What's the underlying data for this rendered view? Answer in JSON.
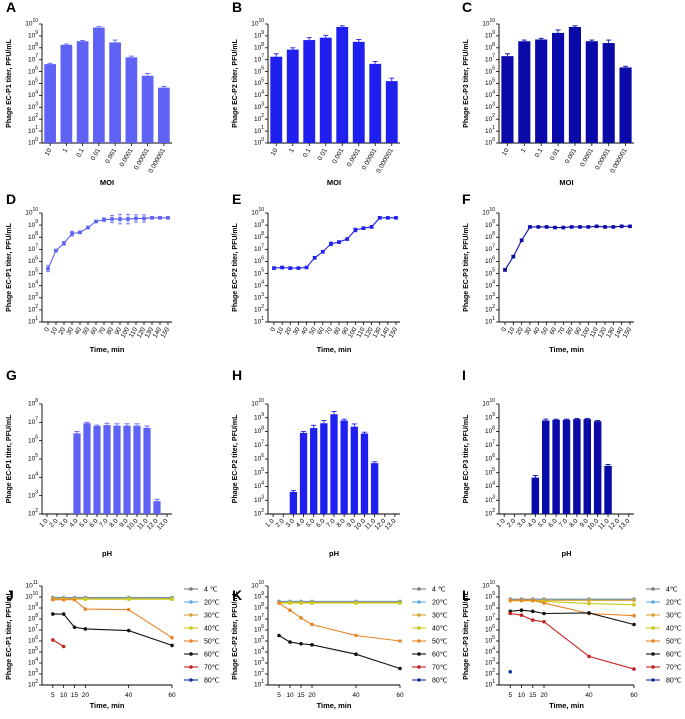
{
  "colors": {
    "light": "#5f63f5",
    "medium": "#1f1ff0",
    "dark": "#0a0aa8",
    "temp": {
      "4": "#7c7c7c",
      "20": "#5fa8e6",
      "30": "#d9a236",
      "40": "#c9c91a",
      "50": "#e88427",
      "60": "#111111",
      "70": "#c62121",
      "80": "#1a2ea6"
    }
  },
  "chart_data": [
    {
      "id": "A",
      "type": "bar",
      "color_key": "light",
      "ylabel": "Phage EC-P1 titer, PFU/mL",
      "xlabel": "MOI",
      "ylog": [
        0,
        10
      ],
      "rotate": true,
      "categories": [
        "10",
        "1",
        "0.1",
        "0.01",
        "0.001",
        "0.0001",
        "0.00001",
        "0.000001"
      ],
      "values": [
        6.63,
        8.25,
        8.55,
        9.7,
        8.45,
        7.2,
        5.65,
        4.65
      ],
      "errors": [
        0.07,
        0.07,
        0.07,
        0.1,
        0.2,
        0.1,
        0.2,
        0.1
      ]
    },
    {
      "id": "B",
      "type": "bar",
      "color_key": "medium",
      "ylabel": "Phage EC-P2 titer, PFU/mL",
      "xlabel": "MOI",
      "ylog": [
        0,
        10
      ],
      "rotate": true,
      "categories": [
        "10",
        "1",
        "0.1",
        "0.01",
        "0.001",
        "0.0001",
        "0.00001",
        "0.000001"
      ],
      "values": [
        7.25,
        7.85,
        8.65,
        8.85,
        9.75,
        8.5,
        6.65,
        5.2
      ],
      "errors": [
        0.25,
        0.15,
        0.2,
        0.2,
        0.1,
        0.2,
        0.2,
        0.25
      ]
    },
    {
      "id": "C",
      "type": "bar",
      "color_key": "dark",
      "ylabel": "Phage EC-P3 titer, PFU/mL",
      "xlabel": "MOI",
      "ylog": [
        0,
        10
      ],
      "rotate": true,
      "categories": [
        "10",
        "1",
        "0.1",
        "0.01",
        "0.001",
        "0.0001",
        "0.00001",
        "0.000001"
      ],
      "values": [
        7.3,
        8.55,
        8.7,
        9.25,
        9.75,
        8.55,
        8.4,
        6.35
      ],
      "errors": [
        0.2,
        0.1,
        0.1,
        0.25,
        0.1,
        0.1,
        0.25,
        0.1
      ]
    },
    {
      "id": "D",
      "type": "line",
      "color_key": "light",
      "ylabel": "Phage EC-P1 titer, PFU/mL",
      "xlabel": "Time, min",
      "ylog": [
        1,
        10
      ],
      "xrange": [
        0,
        150
      ],
      "rotate": true,
      "categories": [
        "0",
        "10",
        "20",
        "30",
        "40",
        "50",
        "60",
        "70",
        "80",
        "90",
        "100",
        "110",
        "120",
        "130",
        "140",
        "150"
      ],
      "values": [
        5.4,
        6.9,
        7.5,
        8.3,
        8.4,
        8.8,
        9.3,
        9.45,
        9.5,
        9.5,
        9.5,
        9.55,
        9.55,
        9.6,
        9.6,
        9.6
      ],
      "errors": [
        0.25,
        0.1,
        0.15,
        0.2,
        0.1,
        0.1,
        0.1,
        0.15,
        0.3,
        0.4,
        0.4,
        0.3,
        0.3,
        0.1,
        0.1,
        0.1
      ]
    },
    {
      "id": "E",
      "type": "line",
      "color_key": "medium",
      "ylabel": "Phage EC-P2 titer, PFU/mL",
      "xlabel": "Time, min",
      "ylog": [
        1,
        10
      ],
      "xrange": [
        0,
        150
      ],
      "rotate": true,
      "categories": [
        "0",
        "10",
        "20",
        "30",
        "40",
        "50",
        "60",
        "70",
        "80",
        "90",
        "100",
        "110",
        "120",
        "130",
        "140",
        "150"
      ],
      "values": [
        5.45,
        5.5,
        5.45,
        5.45,
        5.5,
        6.3,
        6.8,
        7.45,
        7.6,
        7.85,
        8.6,
        8.75,
        8.85,
        9.6,
        9.6,
        9.6
      ],
      "errors": [
        0.1,
        0.1,
        0.1,
        0.05,
        0.05,
        0.1,
        0.1,
        0.15,
        0.1,
        0.1,
        0.15,
        0.1,
        0.1,
        0.1,
        0.05,
        0.05
      ]
    },
    {
      "id": "F",
      "type": "line",
      "color_key": "dark",
      "ylabel": "Phage EC-P3 titer, PFU/mL",
      "xlabel": "Time, min",
      "ylog": [
        1,
        10
      ],
      "xrange": [
        0,
        150
      ],
      "rotate": true,
      "categories": [
        "0",
        "10",
        "20",
        "30",
        "40",
        "50",
        "60",
        "70",
        "80",
        "90",
        "100",
        "110",
        "120",
        "130",
        "140",
        "150"
      ],
      "values": [
        5.3,
        6.4,
        7.75,
        8.85,
        8.85,
        8.85,
        8.8,
        8.8,
        8.85,
        8.85,
        8.85,
        8.9,
        8.85,
        8.85,
        8.9,
        8.9
      ],
      "errors": [
        0.1,
        0.1,
        0.1,
        0.05,
        0.05,
        0.05,
        0.05,
        0.05,
        0.05,
        0.05,
        0.05,
        0.05,
        0.05,
        0.05,
        0.05,
        0.05
      ]
    },
    {
      "id": "G",
      "type": "bar",
      "color_key": "light",
      "ylabel": "Phage EC-P1 titer, PFU/mL",
      "xlabel": "pH",
      "ylog": [
        2,
        8
      ],
      "rotate": false,
      "categories": [
        "1.0",
        "2.0",
        "3.0",
        "4.0",
        "5.0",
        "6.0",
        "7.0",
        "8.0",
        "9.0",
        "10.0",
        "11.0",
        "12.0",
        "13.0"
      ],
      "values": [
        null,
        null,
        null,
        6.4,
        6.95,
        6.8,
        6.85,
        6.82,
        6.82,
        6.82,
        6.7,
        2.7,
        null
      ],
      "errors": [
        0,
        0,
        0,
        0.1,
        0.05,
        0.05,
        0.1,
        0.1,
        0.1,
        0.1,
        0.1,
        0.1,
        0
      ]
    },
    {
      "id": "H",
      "type": "bar",
      "color_key": "medium",
      "ylabel": "Phage EC-P2 titer, PFU/mL",
      "xlabel": "pH",
      "ylog": [
        2,
        10
      ],
      "rotate": false,
      "categories": [
        "1.0",
        "2.0",
        "3.0",
        "4.0",
        "5.0",
        "6.0",
        "7.0",
        "8.0",
        "9.0",
        "10.0",
        "11.0",
        "12.0",
        "13.0"
      ],
      "values": [
        null,
        null,
        3.6,
        7.9,
        8.25,
        8.6,
        9.25,
        8.8,
        8.35,
        7.85,
        5.7,
        null,
        null
      ],
      "errors": [
        0,
        0,
        0.1,
        0.1,
        0.2,
        0.2,
        0.2,
        0.1,
        0.2,
        0.1,
        0.1,
        0,
        0
      ]
    },
    {
      "id": "I",
      "type": "bar",
      "color_key": "dark",
      "ylabel": "Phage EC-P3 titer, PFU/mL",
      "xlabel": "pH",
      "ylog": [
        2,
        10
      ],
      "rotate": false,
      "categories": [
        "1.0",
        "2.0",
        "3.0",
        "4.0",
        "5.0",
        "6.0",
        "7.0",
        "8.0",
        "9.0",
        "10.0",
        "11.0",
        "12.0",
        "13.0"
      ],
      "values": [
        null,
        null,
        null,
        4.65,
        8.8,
        8.85,
        8.85,
        8.9,
        8.9,
        8.75,
        5.5,
        null,
        null
      ],
      "errors": [
        0,
        0,
        0,
        0.15,
        0.1,
        0.05,
        0.05,
        0.05,
        0.05,
        0.05,
        0.1,
        0,
        0
      ]
    },
    {
      "id": "J",
      "type": "line",
      "ylabel": "Phage EC-P1 titer, PFU/mL",
      "xlabel": "Time, min",
      "ylog": [
        2,
        11
      ],
      "xrange": [
        0,
        60
      ],
      "rotate": false,
      "x": [
        5,
        10,
        15,
        20,
        40,
        60
      ],
      "x_ticks": [
        "5",
        "10",
        "15",
        "20",
        "40",
        "60"
      ],
      "legend": [
        "4 ℃",
        "20℃",
        "30℃",
        "40℃",
        "50℃",
        "60℃",
        "70℃",
        "80℃"
      ],
      "series": [
        {
          "name": "4 ℃",
          "temp": "4",
          "values": [
            9.95,
            9.95,
            9.95,
            9.95,
            9.95,
            9.95
          ]
        },
        {
          "name": "20℃",
          "temp": "20",
          "values": [
            9.9,
            9.9,
            9.9,
            9.9,
            9.9,
            9.9
          ]
        },
        {
          "name": "30℃",
          "temp": "30",
          "values": [
            9.85,
            9.85,
            9.85,
            9.85,
            9.85,
            9.85
          ]
        },
        {
          "name": "40℃",
          "temp": "40",
          "values": [
            9.8,
            9.8,
            9.8,
            9.8,
            9.8,
            9.8
          ]
        },
        {
          "name": "50℃",
          "temp": "50",
          "values": [
            9.75,
            9.75,
            9.75,
            8.9,
            8.85,
            6.3
          ]
        },
        {
          "name": "60℃",
          "temp": "60",
          "values": [
            8.45,
            8.45,
            7.25,
            7.1,
            6.95,
            5.6
          ]
        },
        {
          "name": "70℃",
          "temp": "70",
          "values": [
            6.1,
            5.5,
            null,
            null,
            null,
            null
          ]
        },
        {
          "name": "80℃",
          "temp": "80",
          "values": [
            null,
            null,
            null,
            null,
            null,
            null
          ]
        }
      ]
    },
    {
      "id": "K",
      "type": "line",
      "ylabel": "Phage EC-P2 titer, PFU/mL",
      "xlabel": "Time, min",
      "ylog": [
        1,
        10
      ],
      "xrange": [
        0,
        60
      ],
      "rotate": false,
      "x": [
        5,
        10,
        15,
        20,
        40,
        60
      ],
      "x_ticks": [
        "5",
        "10",
        "15",
        "20",
        "40",
        "60"
      ],
      "legend": [
        "4 ℃",
        "20℃",
        "30℃",
        "40℃",
        "50℃",
        "60℃",
        "70℃",
        "80℃"
      ],
      "series": [
        {
          "name": "4 ℃",
          "temp": "4",
          "values": [
            8.6,
            8.6,
            8.6,
            8.6,
            8.6,
            8.6
          ]
        },
        {
          "name": "20℃",
          "temp": "20",
          "values": [
            8.55,
            8.55,
            8.55,
            8.55,
            8.55,
            8.55
          ]
        },
        {
          "name": "30℃",
          "temp": "30",
          "values": [
            8.5,
            8.5,
            8.5,
            8.5,
            8.5,
            8.5
          ]
        },
        {
          "name": "40℃",
          "temp": "40",
          "values": [
            8.45,
            8.45,
            8.45,
            8.45,
            8.45,
            8.45
          ]
        },
        {
          "name": "50℃",
          "temp": "50",
          "values": [
            8.45,
            7.8,
            7.1,
            6.5,
            5.5,
            5.0
          ]
        },
        {
          "name": "60℃",
          "temp": "60",
          "values": [
            5.5,
            4.9,
            4.75,
            4.65,
            3.8,
            2.5
          ]
        },
        {
          "name": "70℃",
          "temp": "70",
          "values": [
            null,
            null,
            null,
            null,
            null,
            null
          ]
        },
        {
          "name": "80℃",
          "temp": "80",
          "values": [
            null,
            null,
            null,
            null,
            null,
            null
          ]
        }
      ]
    },
    {
      "id": "L",
      "type": "line",
      "ylabel": "Phage EC-P3 titer, PFU/mL",
      "xlabel": "Time, min",
      "ylog": [
        1,
        10
      ],
      "xrange": [
        0,
        60
      ],
      "rotate": false,
      "x": [
        5,
        10,
        15,
        20,
        40,
        60
      ],
      "x_ticks": [
        "5",
        "10",
        "15",
        "20",
        "40",
        "60"
      ],
      "legend": [
        "4℃",
        "20℃",
        "30℃",
        "40℃",
        "50℃",
        "60℃",
        "70℃",
        "80℃"
      ],
      "series": [
        {
          "name": "4℃",
          "temp": "4",
          "values": [
            8.8,
            8.8,
            8.8,
            8.8,
            8.8,
            8.8
          ]
        },
        {
          "name": "20℃",
          "temp": "20",
          "values": [
            8.75,
            8.75,
            8.75,
            8.75,
            8.75,
            8.75
          ]
        },
        {
          "name": "30℃",
          "temp": "30",
          "values": [
            8.7,
            8.7,
            8.7,
            8.7,
            8.7,
            8.7
          ]
        },
        {
          "name": "40℃",
          "temp": "40",
          "values": [
            8.65,
            8.65,
            8.65,
            8.6,
            8.4,
            8.3
          ]
        },
        {
          "name": "50℃",
          "temp": "50",
          "values": [
            8.7,
            8.7,
            8.7,
            8.45,
            7.5,
            7.3
          ]
        },
        {
          "name": "60℃",
          "temp": "60",
          "values": [
            7.7,
            7.8,
            7.7,
            7.5,
            7.55,
            6.5
          ]
        },
        {
          "name": "70℃",
          "temp": "70",
          "values": [
            7.5,
            7.35,
            6.9,
            6.75,
            3.6,
            2.45
          ]
        },
        {
          "name": "80℃",
          "temp": "80",
          "values": [
            2.2,
            null,
            null,
            null,
            null,
            null
          ]
        }
      ]
    }
  ]
}
